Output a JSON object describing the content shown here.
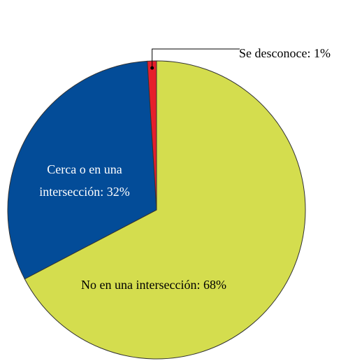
{
  "chart_data": {
    "type": "pie",
    "values": [
      68,
      32,
      1
    ],
    "value_labels": [
      "No en una intersección: 68%",
      "Cerca o en una intersección: 32%",
      "Se desconoce: 1%"
    ],
    "colors": [
      "#d4dd4e",
      "#034c98",
      "#e61f2b"
    ]
  }
}
